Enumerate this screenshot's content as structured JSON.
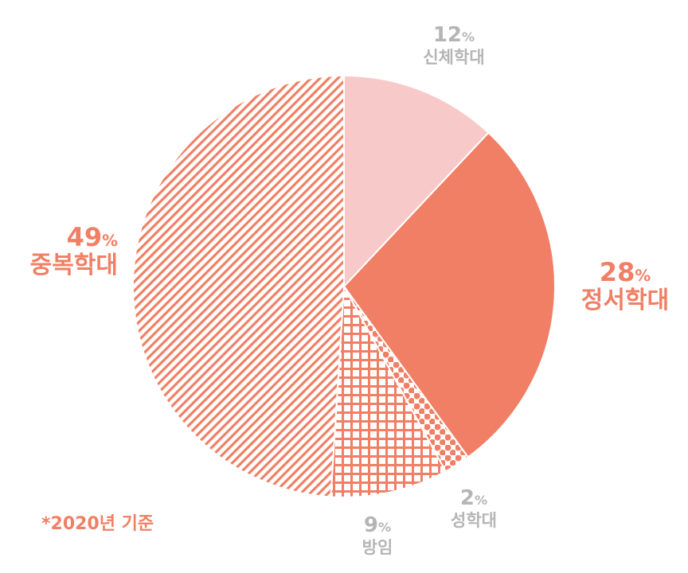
{
  "chart_data": {
    "type": "pie",
    "title": "",
    "slices": [
      {
        "label": "신체학대",
        "value": 12,
        "display": "12",
        "color": "#f8c9c9",
        "pattern": "solid"
      },
      {
        "label": "정서학대",
        "value": 28,
        "display": "28",
        "color": "#f07f65",
        "pattern": "solid"
      },
      {
        "label": "성학대",
        "value": 2,
        "display": "2",
        "color": "#f07f65",
        "pattern": "dots"
      },
      {
        "label": "방임",
        "value": 9,
        "display": "9",
        "color": "#f07f65",
        "pattern": "grid"
      },
      {
        "label": "중복학대",
        "value": 49,
        "display": "49",
        "color": "#f07f65",
        "pattern": "diagonal-stripes"
      }
    ],
    "unit": "%",
    "note": "*2020년 기준"
  }
}
